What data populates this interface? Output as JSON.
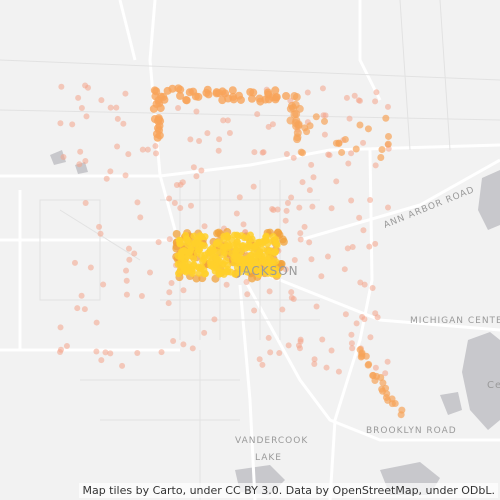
{
  "labels": {
    "city": "JACKSON",
    "ann_arbor_road": "ANN ARBOR ROAD",
    "michigan_center": "MICHIGAN CENTE",
    "brooklyn_road": "BROOKLYN ROAD",
    "vandercook": "VANDERCOOK",
    "lake": "LAKE",
    "ce": "Ce"
  },
  "attribution": "Map tiles by Carto, under CC BY 3.0. Data by OpenStreetMap, under ODbL."
}
